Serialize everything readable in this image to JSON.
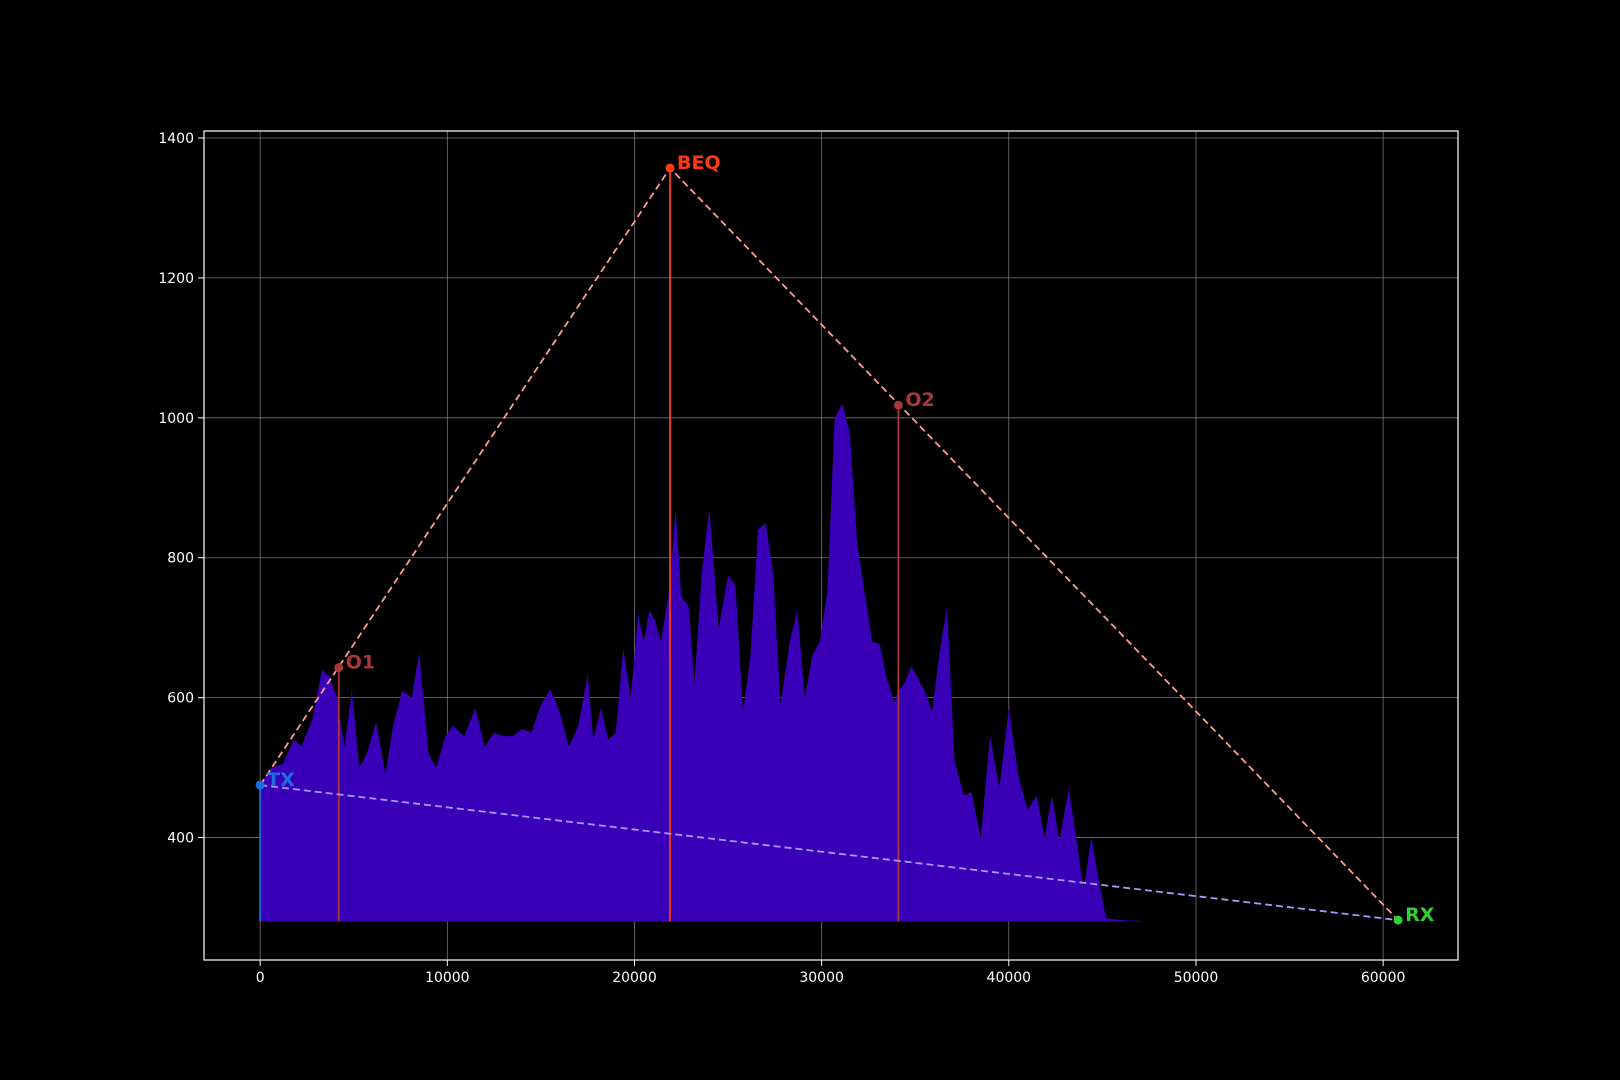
{
  "chart_data": {
    "type": "area",
    "title": "",
    "xlabel": "",
    "ylabel": "",
    "xlim": [
      -3000,
      64000
    ],
    "ylim": [
      225,
      1410
    ],
    "x_ticks": [
      0,
      10000,
      20000,
      30000,
      40000,
      50000,
      60000
    ],
    "y_ticks": [
      400,
      600,
      800,
      1000,
      1200,
      1400
    ],
    "grid": true,
    "baseline": 280,
    "colors": {
      "background": "#000000",
      "terrain": "#3a00b8",
      "tx": "#1a6fe0",
      "rx": "#2fd02f",
      "beq": "#ff3a12",
      "obstacle": "#a83838",
      "path_upper": "#ff9c8c",
      "path_direct": "#a898ff",
      "grid": "#8a8a8a",
      "axis": "#ffffff"
    },
    "terrain": {
      "x": [
        0,
        600,
        1200,
        1800,
        2200,
        2800,
        3300,
        3700,
        4100,
        4500,
        4900,
        5300,
        5700,
        6200,
        6700,
        7100,
        7600,
        8100,
        8500,
        9000,
        9400,
        9900,
        10300,
        10900,
        11500,
        12000,
        12500,
        13000,
        13500,
        14000,
        14500,
        15000,
        15500,
        16000,
        16500,
        17000,
        17500,
        17800,
        18200,
        18600,
        19000,
        19400,
        19800,
        20200,
        20500,
        20800,
        21100,
        21400,
        21900,
        22200,
        22500,
        22900,
        23200,
        23600,
        24000,
        24500,
        25000,
        25400,
        25800,
        26200,
        26600,
        27000,
        27400,
        27800,
        28300,
        28700,
        29100,
        29500,
        29900,
        30300,
        30700,
        31100,
        31500,
        31900,
        32300,
        32700,
        33100,
        33500,
        33900,
        34100,
        34400,
        34800,
        35100,
        35500,
        35900,
        36300,
        36700,
        37100,
        37600,
        38000,
        38500,
        39000,
        39500,
        40000,
        40500,
        41000,
        41500,
        41900,
        42300,
        42700,
        43200,
        43600,
        44000,
        44400,
        44800,
        45200,
        45600,
        46100,
        46500,
        47000,
        47400,
        47800,
        48200,
        48700,
        49100,
        49600,
        50000,
        50500,
        50900,
        51400,
        51800,
        52300,
        52800,
        53200,
        53700,
        54100,
        54500,
        54900,
        55300,
        55700,
        56500,
        57500,
        58500,
        59500,
        60800
      ],
      "y": [
        475,
        500,
        505,
        540,
        530,
        570,
        640,
        630,
        600,
        530,
        610,
        500,
        520,
        565,
        490,
        560,
        610,
        600,
        665,
        520,
        500,
        545,
        560,
        545,
        585,
        530,
        550,
        545,
        545,
        555,
        550,
        590,
        612,
        580,
        530,
        560,
        633,
        540,
        585,
        540,
        550,
        670,
        600,
        720,
        680,
        725,
        710,
        680,
        760,
        870,
        745,
        730,
        620,
        780,
        870,
        700,
        775,
        760,
        580,
        660,
        840,
        850,
        780,
        590,
        680,
        725,
        600,
        660,
        680,
        750,
        1000,
        1020,
        980,
        820,
        750,
        680,
        677,
        625,
        593,
        610,
        620,
        645,
        630,
        610,
        580,
        665,
        730,
        510,
        460,
        465,
        400,
        545,
        470,
        585,
        490,
        440,
        460,
        400,
        460,
        395,
        470,
        400,
        325,
        400,
        340,
        285,
        283,
        282,
        281,
        281,
        280,
        280,
        280,
        280,
        280,
        280,
        280,
        280,
        280,
        280,
        280,
        280,
        280,
        280,
        280,
        280,
        280,
        280,
        280,
        280,
        280,
        280,
        280,
        280,
        280
      ]
    },
    "points": [
      {
        "label": "TX",
        "x": 0,
        "y": 475
      },
      {
        "label": "O1",
        "x": 4200,
        "y": 643
      },
      {
        "label": "BEQ",
        "x": 21900,
        "y": 1357
      },
      {
        "label": "O2",
        "x": 34100,
        "y": 1018
      },
      {
        "label": "RX",
        "x": 60800,
        "y": 282
      }
    ]
  }
}
